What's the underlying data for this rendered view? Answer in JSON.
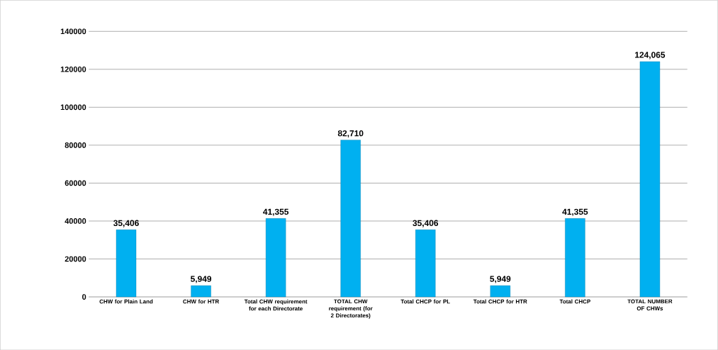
{
  "chart_data": {
    "type": "bar",
    "categories": [
      "CHW for Plain Land",
      "CHW for HTR",
      "Total CHW requirement for each Directorate",
      "TOTAL CHW requirement (for 2 Directorates)",
      "Total CHCP for PL",
      "Total CHCP for HTR",
      "Total CHCP",
      "TOTAL NUMBER OF CHWs"
    ],
    "values": [
      35406,
      5949,
      41355,
      82710,
      35406,
      5949,
      41355,
      124065
    ],
    "value_labels": [
      "35,406",
      "5,949",
      "41,355",
      "82,710",
      "35,406",
      "5,949",
      "41,355",
      "124,065"
    ],
    "color": "#00b0f0",
    "ylim": [
      0,
      140000
    ],
    "yticks": [
      0,
      20000,
      40000,
      60000,
      80000,
      100000,
      120000,
      140000
    ],
    "grid": "y"
  }
}
